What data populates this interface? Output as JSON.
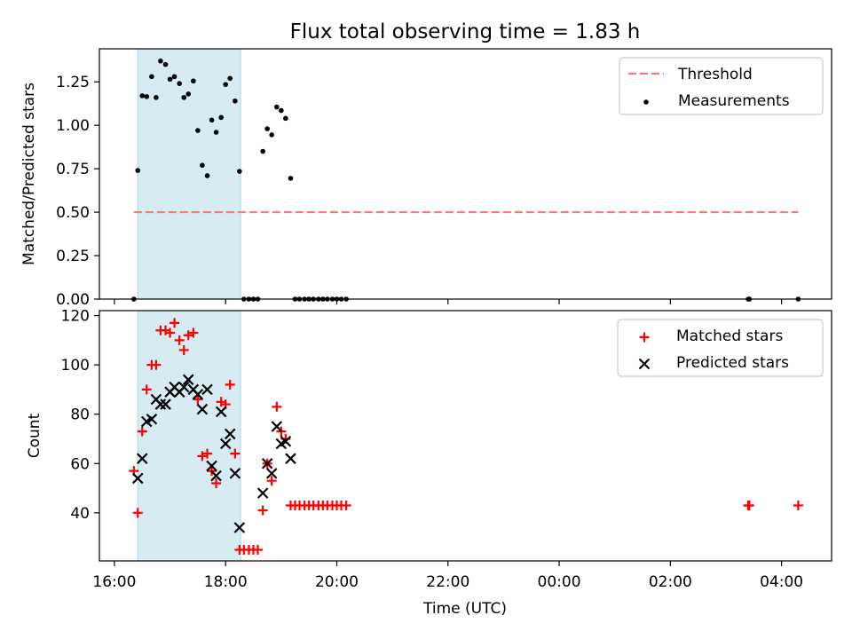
{
  "title": "Flux total observing time = 1.83 h",
  "colors": {
    "highlight": "#add8e6",
    "threshold": "#ff7777",
    "measurement": "#000000",
    "matched": "#ff0000",
    "predicted": "#000000"
  },
  "chart_data": [
    {
      "type": "scatter",
      "ylabel": "Matched/Predicted stars",
      "xlabel": "",
      "ylim": [
        0,
        1.44
      ],
      "yticks": [
        "0.00",
        "0.25",
        "0.50",
        "0.75",
        "1.00",
        "1.25"
      ],
      "xticks": [
        "16:00",
        "18:00",
        "20:00",
        "22:00",
        "00:00",
        "02:00",
        "04:00"
      ],
      "xlim_hours_since_16": [
        -0.27,
        12.9
      ],
      "highlight_span_hours_since_16": [
        0.42,
        2.27
      ],
      "legend": {
        "placement": "top-right",
        "entries": [
          "Threshold",
          "Measurements"
        ]
      },
      "threshold": {
        "name": "Threshold",
        "value": 0.5,
        "x_range_hours_since_16": [
          0.35,
          12.3
        ],
        "style": "dashed"
      },
      "series": [
        {
          "name": "Measurements",
          "marker": "dot",
          "points": [
            [
              0.35,
              0.0
            ],
            [
              0.42,
              0.74
            ],
            [
              0.5,
              1.17
            ],
            [
              0.58,
              1.165
            ],
            [
              0.67,
              1.28
            ],
            [
              0.75,
              1.16
            ],
            [
              0.83,
              1.37
            ],
            [
              0.92,
              1.35
            ],
            [
              1.0,
              1.265
            ],
            [
              1.08,
              1.28
            ],
            [
              1.17,
              1.24
            ],
            [
              1.25,
              1.16
            ],
            [
              1.33,
              1.18
            ],
            [
              1.42,
              1.255
            ],
            [
              1.5,
              0.97
            ],
            [
              1.58,
              0.77
            ],
            [
              1.67,
              0.71
            ],
            [
              1.75,
              1.03
            ],
            [
              1.83,
              0.96
            ],
            [
              1.92,
              1.045
            ],
            [
              2.0,
              1.235
            ],
            [
              2.08,
              1.27
            ],
            [
              2.17,
              1.14
            ],
            [
              2.25,
              0.735
            ],
            [
              2.33,
              0.0
            ],
            [
              2.42,
              0.0
            ],
            [
              2.5,
              0.0
            ],
            [
              2.58,
              0.0
            ],
            [
              2.67,
              0.85
            ],
            [
              2.75,
              0.98
            ],
            [
              2.83,
              0.945
            ],
            [
              2.92,
              1.105
            ],
            [
              3.0,
              1.085
            ],
            [
              3.08,
              1.04
            ],
            [
              3.17,
              0.695
            ],
            [
              3.25,
              0.0
            ],
            [
              3.33,
              0.0
            ],
            [
              3.42,
              0.0
            ],
            [
              3.5,
              0.0
            ],
            [
              3.58,
              0.0
            ],
            [
              3.67,
              0.0
            ],
            [
              3.75,
              0.0
            ],
            [
              3.83,
              0.0
            ],
            [
              3.92,
              0.0
            ],
            [
              4.0,
              0.0
            ],
            [
              4.08,
              0.0
            ],
            [
              4.17,
              0.0
            ],
            [
              11.4,
              0.0
            ],
            [
              11.42,
              0.0
            ],
            [
              12.3,
              0.0
            ]
          ]
        }
      ]
    },
    {
      "type": "scatter",
      "ylabel": "Count",
      "xlabel": "Time (UTC)",
      "ylim": [
        20.5,
        122
      ],
      "yticks": [
        "40",
        "60",
        "80",
        "100",
        "120"
      ],
      "xticks": [
        "16:00",
        "18:00",
        "20:00",
        "22:00",
        "00:00",
        "02:00",
        "04:00"
      ],
      "xlim_hours_since_16": [
        -0.27,
        12.9
      ],
      "highlight_span_hours_since_16": [
        0.42,
        2.27
      ],
      "legend": {
        "placement": "top-right",
        "entries": [
          "Matched stars",
          "Predicted stars"
        ]
      },
      "series": [
        {
          "name": "Matched stars",
          "marker": "plus",
          "points": [
            [
              0.35,
              57
            ],
            [
              0.42,
              40
            ],
            [
              0.5,
              73
            ],
            [
              0.58,
              90
            ],
            [
              0.67,
              100
            ],
            [
              0.75,
              100
            ],
            [
              0.83,
              114
            ],
            [
              0.92,
              114
            ],
            [
              1.0,
              113
            ],
            [
              1.08,
              117
            ],
            [
              1.17,
              110
            ],
            [
              1.25,
              106
            ],
            [
              1.33,
              112
            ],
            [
              1.42,
              113
            ],
            [
              1.5,
              86
            ],
            [
              1.58,
              63
            ],
            [
              1.67,
              64
            ],
            [
              1.75,
              57
            ],
            [
              1.83,
              52
            ],
            [
              1.92,
              85
            ],
            [
              2.0,
              84
            ],
            [
              2.08,
              92
            ],
            [
              2.17,
              64
            ],
            [
              2.25,
              25
            ],
            [
              2.33,
              25
            ],
            [
              2.42,
              25
            ],
            [
              2.5,
              25
            ],
            [
              2.58,
              25
            ],
            [
              2.67,
              41
            ],
            [
              2.75,
              60
            ],
            [
              2.83,
              53
            ],
            [
              2.92,
              83
            ],
            [
              3.0,
              73
            ],
            [
              3.08,
              70
            ],
            [
              3.17,
              43
            ],
            [
              3.25,
              43
            ],
            [
              3.33,
              43
            ],
            [
              3.42,
              43
            ],
            [
              3.5,
              43
            ],
            [
              3.58,
              43
            ],
            [
              3.67,
              43
            ],
            [
              3.75,
              43
            ],
            [
              3.83,
              43
            ],
            [
              3.92,
              43
            ],
            [
              4.0,
              43
            ],
            [
              4.08,
              43
            ],
            [
              4.17,
              43
            ],
            [
              11.4,
              43
            ],
            [
              11.42,
              43
            ],
            [
              12.3,
              43
            ]
          ]
        },
        {
          "name": "Predicted stars",
          "marker": "x",
          "points": [
            [
              0.42,
              54
            ],
            [
              0.5,
              62
            ],
            [
              0.58,
              77
            ],
            [
              0.67,
              78
            ],
            [
              0.75,
              86
            ],
            [
              0.83,
              84
            ],
            [
              0.92,
              84
            ],
            [
              1.0,
              89
            ],
            [
              1.08,
              91
            ],
            [
              1.17,
              89
            ],
            [
              1.25,
              91
            ],
            [
              1.33,
              94
            ],
            [
              1.42,
              90
            ],
            [
              1.5,
              88
            ],
            [
              1.58,
              82
            ],
            [
              1.67,
              90
            ],
            [
              1.75,
              59
            ],
            [
              1.83,
              55
            ],
            [
              1.92,
              81
            ],
            [
              2.0,
              68
            ],
            [
              2.08,
              72
            ],
            [
              2.17,
              56
            ],
            [
              2.25,
              34
            ],
            [
              2.67,
              48
            ],
            [
              2.75,
              60
            ],
            [
              2.83,
              56
            ],
            [
              2.92,
              75
            ],
            [
              3.0,
              68
            ],
            [
              3.08,
              69
            ],
            [
              3.17,
              62
            ]
          ]
        }
      ]
    }
  ]
}
